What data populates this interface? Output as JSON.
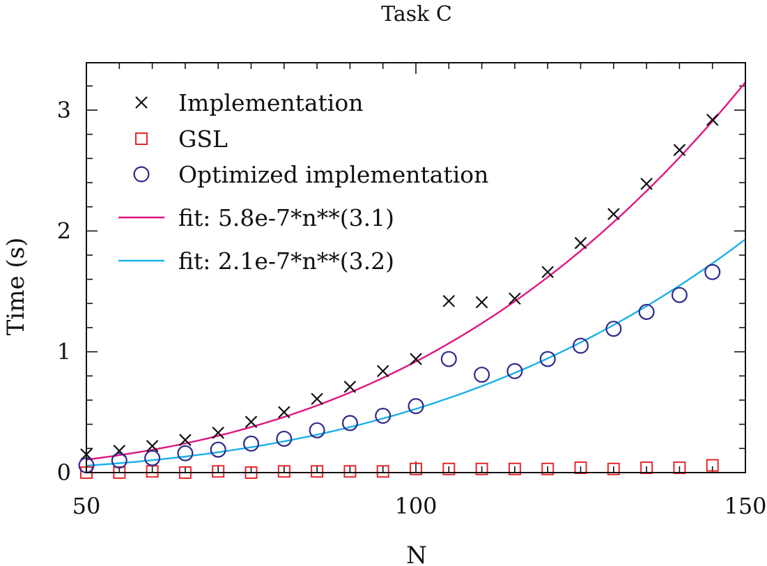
{
  "chart_data": {
    "type": "scatter",
    "title": "Task C",
    "xlabel": "N",
    "ylabel": "Time (s)",
    "xlim": [
      50,
      150
    ],
    "ylim": [
      0,
      3.3
    ],
    "xticks": [
      50,
      100,
      150
    ],
    "yticks": [
      0,
      1,
      2,
      3
    ],
    "grid": false,
    "legend_position": "top-left",
    "series": [
      {
        "name": "Implementation",
        "marker": "x",
        "color": "#111111",
        "x": [
          50,
          55,
          60,
          65,
          70,
          75,
          80,
          85,
          90,
          95,
          100,
          105,
          110,
          115,
          120,
          125,
          130,
          135,
          140,
          145
        ],
        "y": [
          0.15,
          0.18,
          0.22,
          0.27,
          0.33,
          0.42,
          0.5,
          0.61,
          0.71,
          0.84,
          0.94,
          1.42,
          1.41,
          1.44,
          1.66,
          1.9,
          2.14,
          2.39,
          2.67,
          2.92
        ]
      },
      {
        "name": "GSL",
        "marker": "square",
        "color": "#e8262b",
        "x": [
          50,
          55,
          60,
          65,
          70,
          75,
          80,
          85,
          90,
          95,
          100,
          105,
          110,
          115,
          120,
          125,
          130,
          135,
          140,
          145
        ],
        "y": [
          0.0,
          0.0,
          0.01,
          0.0,
          0.01,
          0.0,
          0.01,
          0.01,
          0.01,
          0.01,
          0.03,
          0.03,
          0.03,
          0.03,
          0.03,
          0.04,
          0.03,
          0.04,
          0.04,
          0.06
        ]
      },
      {
        "name": "Optimized implementation",
        "marker": "circle",
        "color": "#2b2a8c",
        "x": [
          50,
          55,
          60,
          65,
          70,
          75,
          80,
          85,
          90,
          95,
          100,
          105,
          110,
          115,
          120,
          125,
          130,
          135,
          140,
          145
        ],
        "y": [
          0.06,
          0.1,
          0.12,
          0.16,
          0.19,
          0.24,
          0.28,
          0.35,
          0.41,
          0.47,
          0.55,
          0.94,
          0.81,
          0.84,
          0.94,
          1.05,
          1.19,
          1.33,
          1.47,
          1.66
        ]
      }
    ],
    "fits": [
      {
        "name": "fit: 5.8e-7*n**(3.1)",
        "coef": 5.8e-07,
        "exp": 3.1,
        "color": "#e0157f"
      },
      {
        "name": "fit: 2.1e-7*n**(3.2)",
        "coef": 2.1e-07,
        "exp": 3.2,
        "color": "#1ab0e8"
      }
    ]
  }
}
